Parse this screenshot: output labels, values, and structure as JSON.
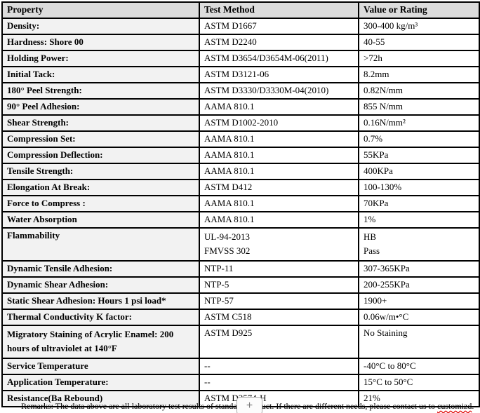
{
  "colors": {
    "header_background": "#dcdcdc",
    "property_column_background": "#f2f2f2",
    "table_border": "#000000",
    "spellcheck_underline": "#e00000"
  },
  "table": {
    "headers": [
      "Property",
      "Test Method",
      "Value or Rating"
    ],
    "rows": [
      {
        "property": "Density:",
        "method": "ASTM D1667",
        "value": "300-400 kg/m³"
      },
      {
        "property": "Hardness: Shore 00",
        "method": "ASTM D2240",
        "value": "40-55"
      },
      {
        "property": "Holding Power:",
        "method": "ASTM D3654/D3654M-06(2011)",
        "value": ">72h"
      },
      {
        "property": "Initial Tack:",
        "method": "ASTM D3121-06",
        "value": "8.2mm"
      },
      {
        "property": "180°  Peel Strength:",
        "method": "ASTM D3330/D3330M-04(2010)",
        "value": "0.82N/mm"
      },
      {
        "property": "90° Peel Adhesion:",
        "method": "AAMA 810.1",
        "value": "855 N/mm"
      },
      {
        "property": "Shear Strength:",
        "method": "ASTM D1002-2010",
        "value": "0.16N/mm²"
      },
      {
        "property": "Compression Set:",
        "method": "AAMA 810.1",
        "value": "0.7%"
      },
      {
        "property": "Compression Deflection:",
        "method": "AAMA 810.1",
        "value": "55KPa"
      },
      {
        "property": "Tensile Strength:",
        "method": "AAMA 810.1",
        "value": "400KPa"
      },
      {
        "property": "Elongation At Break:",
        "method": "ASTM D412",
        "value": "100-130%"
      },
      {
        "property": "Force to Compress :",
        "method": "AAMA 810.1",
        "value": "70KPa"
      },
      {
        "property": "Water Absorption",
        "method": "AAMA 810.1",
        "value": "1%"
      },
      {
        "property": "Flammability",
        "method": [
          "UL-94-2013",
          "FMVSS 302"
        ],
        "value": [
          "HB",
          "Pass"
        ]
      },
      {
        "property": "Dynamic Tensile Adhesion:",
        "method": "NTP-11",
        "value": "307-365KPa"
      },
      {
        "property": "Dynamic Shear Adhesion:",
        "method": "NTP-5",
        "value": "200-255KPa"
      },
      {
        "property": "Static Shear Adhesion: Hours 1 psi load*",
        "method": "NTP-57",
        "value": "1900+"
      },
      {
        "property": "Thermal Conductivity K factor:",
        "method": "ASTM C518",
        "value": "0.06w/m•°C"
      },
      {
        "property": [
          "Migratory Staining of Acrylic Enamel: 200",
          "hours of ultraviolet at 140°F"
        ],
        "method": "ASTM D925",
        "value": "No Staining"
      },
      {
        "property": "Service Temperature",
        "method": "--",
        "value": "-40°C to 80°C"
      },
      {
        "property": "Application Temperature:",
        "method": "--",
        "value": "15°C to 50°C"
      },
      {
        "property": "Resistance(Ba Rebound)",
        "method": "ASTM D3574-H",
        "value": "21%"
      }
    ]
  },
  "remarks": {
    "prefix": "Remarks: The data above are all laboratory test results of standard product. If there are different needs, please contact us to ",
    "misspelled_word": "customizd",
    "suffix": "."
  },
  "overlay": {
    "plus_button_label": "+"
  }
}
